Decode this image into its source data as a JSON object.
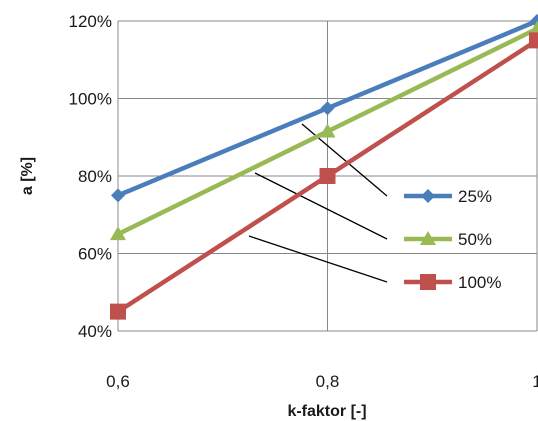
{
  "chart_data": {
    "type": "line",
    "title": "",
    "xlabel": "k-faktor [-]",
    "ylabel": "a [%]",
    "x": [
      0.6,
      0.8,
      1.0
    ],
    "x_tick_labels": [
      "0,6",
      "0,8",
      "1"
    ],
    "xlim": [
      0.6,
      1.0
    ],
    "ylim": [
      40,
      120
    ],
    "y_ticks": [
      40,
      60,
      80,
      100,
      120
    ],
    "y_tick_labels": [
      "40%",
      "60%",
      "80%",
      "100%",
      "120%"
    ],
    "grid": "vertical and horizontal major gridlines",
    "legend_position": "right",
    "series": [
      {
        "name": "25%",
        "values": [
          75,
          97.5,
          120
        ],
        "color": "#4a7ebb",
        "marker": "diamond"
      },
      {
        "name": "50%",
        "values": [
          65,
          91.5,
          118
        ],
        "color": "#98b954",
        "marker": "triangle"
      },
      {
        "name": "100%",
        "values": [
          45,
          80,
          115
        ],
        "color": "#c0504d",
        "marker": "square"
      }
    ]
  }
}
